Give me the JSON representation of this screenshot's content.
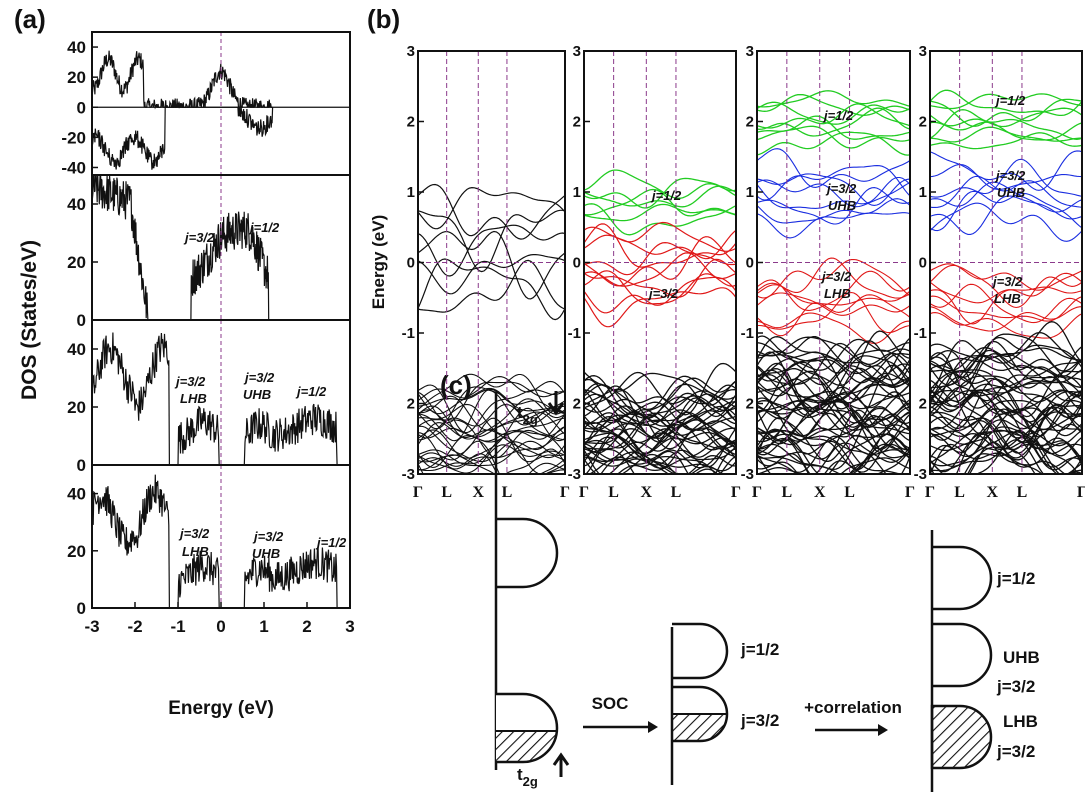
{
  "chart_data": [
    {
      "panel": "(a)",
      "type": "line",
      "xlabel": "Energy (eV)",
      "ylabel": "DOS (States/eV)",
      "xlim": [
        -3,
        3
      ],
      "x_ticks": [
        "-3",
        "-2",
        "-1",
        "0",
        "1",
        "2",
        "3"
      ],
      "fermi_level": 0,
      "subplots": [
        {
          "ylim": [
            -45,
            50
          ],
          "y_ticks": [
            "40",
            "20",
            "0",
            "-20",
            "-40"
          ],
          "spin_polarized": true,
          "annotations": []
        },
        {
          "ylim": [
            0,
            50
          ],
          "y_ticks": [
            "40",
            "20",
            "0"
          ],
          "annotations": [
            "j=3/2",
            "j=1/2"
          ]
        },
        {
          "ylim": [
            0,
            50
          ],
          "y_ticks": [
            "40",
            "20",
            "0"
          ],
          "annotations": [
            "j=3/2",
            "LHB",
            "j=3/2",
            "UHB",
            "j=1/2"
          ]
        },
        {
          "ylim": [
            0,
            50
          ],
          "y_ticks": [
            "40",
            "20",
            "0"
          ],
          "annotations": [
            "j=3/2",
            "LHB",
            "j=3/2",
            "UHB",
            "j=1/2"
          ]
        }
      ]
    },
    {
      "panel": "(b)",
      "type": "line",
      "ylabel": "Energy (eV)",
      "ylim": [
        -3,
        3
      ],
      "y_ticks": [
        "3",
        "2",
        "1",
        "0",
        "-1",
        "2",
        "-3"
      ],
      "k_labels": [
        "Γ",
        "L",
        "X",
        "L",
        "Γ"
      ],
      "subplots": [
        {
          "bands": "black",
          "annotations": []
        },
        {
          "bands": "soc",
          "annotations": [
            "j=1/2",
            "j=3/2"
          ]
        },
        {
          "bands": "soc+u",
          "annotations": [
            "j=1/2",
            "j=3/2",
            "UHB",
            "j=3/2",
            "LHB"
          ]
        },
        {
          "bands": "soc+u",
          "annotations": [
            "j=1/2",
            "j=3/2",
            "UHB",
            "j=3/2",
            "LHB"
          ]
        }
      ],
      "colors": {
        "j12": "#22cc22",
        "uhb": "#1a2ee0",
        "lhb": "#e01818",
        "other": "#111111"
      }
    }
  ],
  "panel_labels": {
    "a": "(a)",
    "b": "(b)",
    "c": "(c)"
  },
  "schematic": {
    "t2g_down": "t",
    "t2g_sub": "2g",
    "soc": "SOC",
    "correlation": "+correlation",
    "j12": "j=1/2",
    "j32": "j=3/2",
    "uhb": "UHB",
    "lhb": "LHB",
    "uhb_j": "j=3/2",
    "lhb_j": "j=3/2"
  },
  "colors": {
    "fermi": "#8b3a8b",
    "ink": "#111111"
  }
}
